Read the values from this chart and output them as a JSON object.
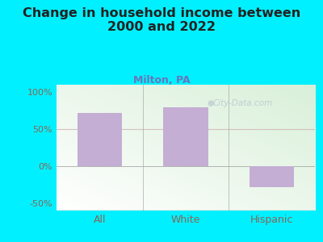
{
  "title": "Change in household income between\n2000 and 2022",
  "subtitle": "Milton, PA",
  "categories": [
    "All",
    "White",
    "Hispanic"
  ],
  "values": [
    72,
    80,
    -28
  ],
  "bar_color": "#c4aed4",
  "title_fontsize": 11.5,
  "subtitle_fontsize": 9,
  "subtitle_color": "#6677bb",
  "tick_label_color": "#886655",
  "background_outer": "#00f0ff",
  "ylim": [
    -60,
    110
  ],
  "yticks": [
    -50,
    0,
    50,
    100
  ],
  "ytick_labels": [
    "-50%",
    "0%",
    "50%",
    "100%"
  ],
  "watermark": "City-Data.com",
  "grid50_color": "#ccaaaa",
  "bottom_line_color": "#aaaaaa"
}
